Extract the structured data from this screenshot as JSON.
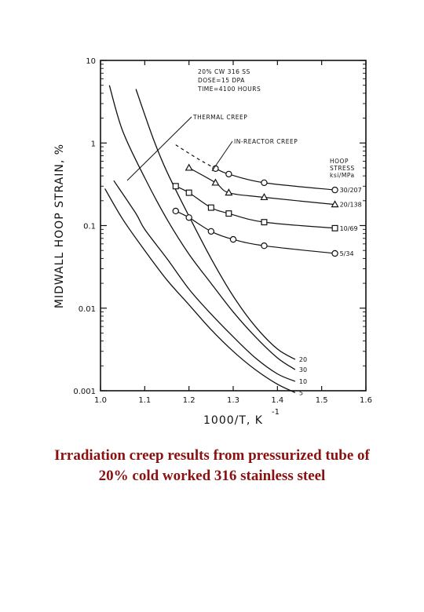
{
  "chart_data": {
    "type": "line",
    "title": "",
    "xlabel": "1000/T, K",
    "xlabel_sup": "-1",
    "ylabel": "MIDWALL HOOP STRAIN, %",
    "xlim": [
      1.0,
      1.6
    ],
    "ylim": [
      0.001,
      10
    ],
    "y_scale": "log",
    "grid": false,
    "x_ticks": [
      1.0,
      1.1,
      1.2,
      1.3,
      1.4,
      1.5,
      1.6
    ],
    "x_tick_labels": [
      "1.0",
      "1.1",
      "1.2",
      "1.3",
      "1.4",
      "1.5",
      "1.6"
    ],
    "y_ticks": [
      0.001,
      0.01,
      0.1,
      1,
      10
    ],
    "y_tick_labels": [
      "0.001",
      "0.01",
      "0.1",
      "1",
      "10"
    ],
    "annotations": {
      "conditions": [
        "20% CW 316 SS",
        "DOSE=15 DPA",
        "TIME=4100 HOURS"
      ],
      "thermal_creep": "THERMAL CREEP",
      "in_reactor_creep": "IN-REACTOR CREEP",
      "hoop_stress_header": [
        "HOOP",
        "STRESS",
        "ksi/MPa"
      ]
    },
    "thermal_creep_series": [
      {
        "name": "30",
        "x": [
          1.02,
          1.05,
          1.1,
          1.15,
          1.2,
          1.25,
          1.3,
          1.35,
          1.4,
          1.44
        ],
        "y": [
          5.0,
          1.4,
          0.38,
          0.12,
          0.045,
          0.02,
          0.009,
          0.0045,
          0.0025,
          0.0018
        ]
      },
      {
        "name": "20",
        "x": [
          1.08,
          1.12,
          1.15,
          1.2,
          1.25,
          1.3,
          1.35,
          1.4,
          1.44
        ],
        "y": [
          4.5,
          1.1,
          0.45,
          0.13,
          0.04,
          0.014,
          0.006,
          0.0032,
          0.0024
        ]
      },
      {
        "name": "10",
        "x": [
          1.03,
          1.08,
          1.1,
          1.15,
          1.2,
          1.25,
          1.3,
          1.35,
          1.4,
          1.44
        ],
        "y": [
          0.35,
          0.14,
          0.09,
          0.04,
          0.017,
          0.0085,
          0.0045,
          0.0025,
          0.0016,
          0.0013
        ]
      },
      {
        "name": "5",
        "x": [
          1.01,
          1.05,
          1.1,
          1.15,
          1.2,
          1.25,
          1.3,
          1.35,
          1.4,
          1.44
        ],
        "y": [
          0.28,
          0.12,
          0.05,
          0.022,
          0.011,
          0.0055,
          0.003,
          0.0018,
          0.0012,
          0.00095
        ]
      }
    ],
    "in_reactor_series": [
      {
        "name": "30/207",
        "marker": "circle",
        "x": [
          1.26,
          1.29,
          1.37,
          1.53
        ],
        "y": [
          0.49,
          0.42,
          0.33,
          0.27
        ],
        "dashed_x": [
          1.17,
          1.2,
          1.23,
          1.26
        ],
        "dashed_y": [
          0.95,
          0.75,
          0.6,
          0.49
        ]
      },
      {
        "name": "20/138",
        "marker": "triangle",
        "x": [
          1.2,
          1.26,
          1.29,
          1.37,
          1.53
        ],
        "y": [
          0.5,
          0.33,
          0.25,
          0.22,
          0.18
        ]
      },
      {
        "name": "10/69",
        "marker": "square",
        "x": [
          1.17,
          1.2,
          1.25,
          1.29,
          1.37,
          1.53
        ],
        "y": [
          0.3,
          0.25,
          0.165,
          0.14,
          0.11,
          0.093
        ]
      },
      {
        "name": "5/34",
        "marker": "circle",
        "x": [
          1.17,
          1.2,
          1.25,
          1.3,
          1.37,
          1.53
        ],
        "y": [
          0.15,
          0.125,
          0.085,
          0.068,
          0.057,
          0.046
        ]
      }
    ],
    "curve_labels": [
      "30",
      "20",
      "10",
      "5"
    ],
    "stress_labels": [
      "30/207",
      "20/138",
      "10/69",
      "5/34"
    ]
  },
  "caption": {
    "line1": "Irradiation creep results from pressurized tube of",
    "line2": "20% cold worked 316 stainless steel"
  }
}
